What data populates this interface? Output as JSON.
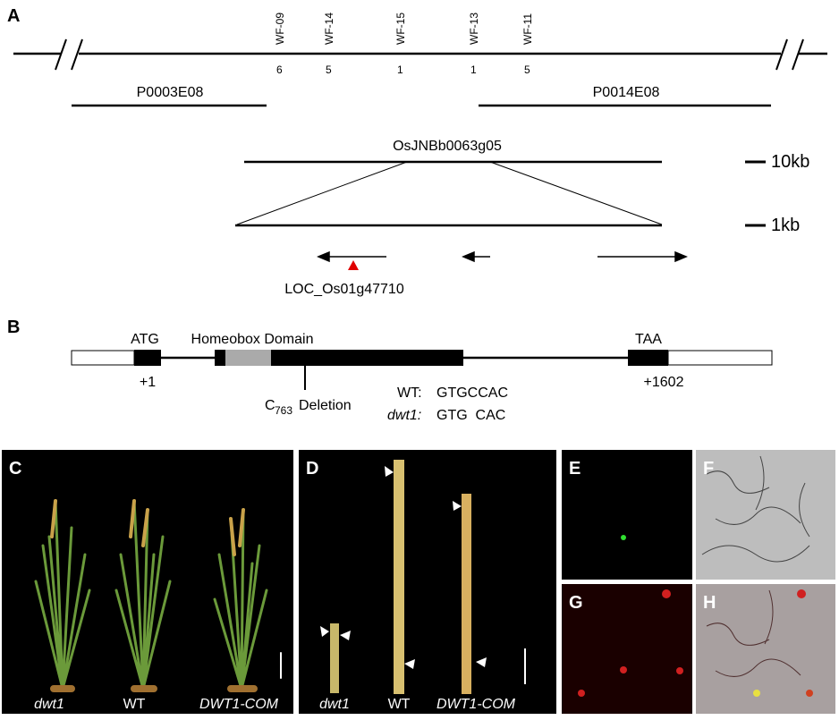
{
  "panels": {
    "A": {
      "label": "A",
      "markers": [
        {
          "name": "WF-09",
          "count": 6
        },
        {
          "name": "WF-14",
          "count": 5
        },
        {
          "name": "WF-15",
          "count": 1
        },
        {
          "name": "WF-13",
          "count": 1
        },
        {
          "name": "WF-11",
          "count": 5
        }
      ],
      "bacs": [
        "P0003E08",
        "P0014E08"
      ],
      "clone": "OsJNBb0063g05",
      "scale_large": "10kb",
      "scale_small": "1kb",
      "gene": "LOC_Os01g47710"
    },
    "B": {
      "label": "B",
      "start_codon": "ATG",
      "domain": "Homeobox Domain",
      "stop_codon": "TAA",
      "start_pos": "+1",
      "end_pos": "+1602",
      "deletion_base": "C",
      "deletion_index": "763",
      "deletion_word": "Deletion",
      "wt_label": "WT:",
      "wt_seq": "GTGCCAC",
      "mut_label": "dwt1:",
      "mut_seq": "GTG  CAC"
    },
    "C": {
      "label": "C",
      "captions": [
        "dwt1",
        "WT",
        "DWT1-COM"
      ]
    },
    "D": {
      "label": "D",
      "captions": [
        "dwt1",
        "WT",
        "DWT1-COM"
      ]
    },
    "E": {
      "label": "E"
    },
    "F": {
      "label": "F"
    },
    "G": {
      "label": "G"
    },
    "H": {
      "label": "H"
    }
  }
}
